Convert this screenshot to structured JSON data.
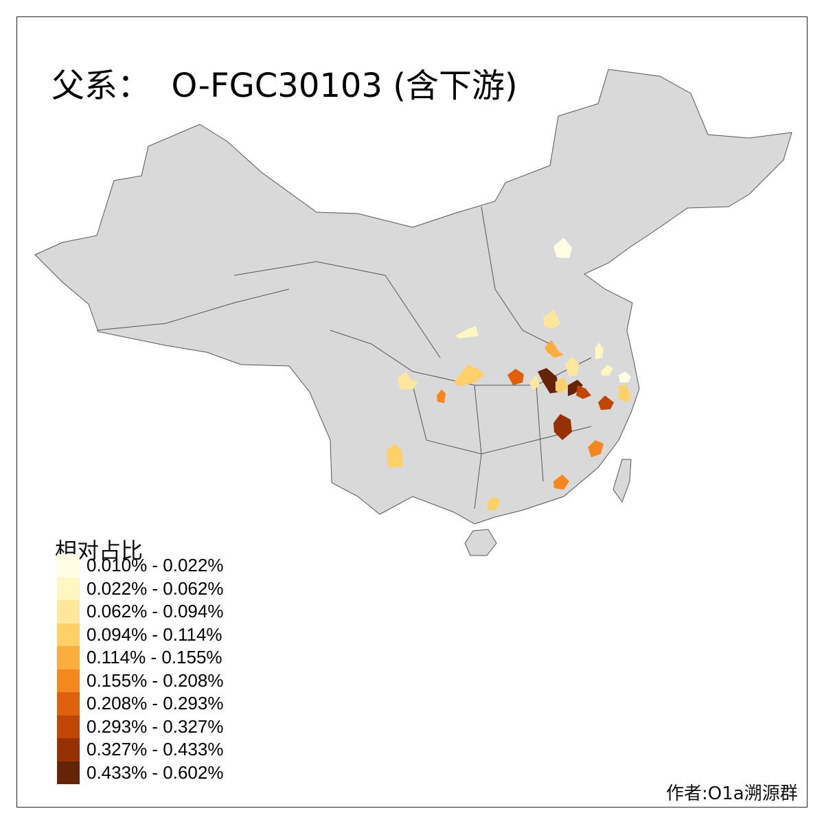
{
  "title": "父系：  O-FGC30103 (含下游)",
  "legend": {
    "title": "相对占比",
    "items": [
      {
        "label": "0.010% - 0.022%",
        "color": "#FFFDE3"
      },
      {
        "label": "0.022% - 0.062%",
        "color": "#FFF6C2"
      },
      {
        "label": "0.062% - 0.094%",
        "color": "#FEE69C"
      },
      {
        "label": "0.094% - 0.114%",
        "color": "#FED06A"
      },
      {
        "label": "0.114% - 0.155%",
        "color": "#FDAD3E"
      },
      {
        "label": "0.155% - 0.208%",
        "color": "#F5871F"
      },
      {
        "label": "0.208% - 0.293%",
        "color": "#DE620E"
      },
      {
        "label": "0.293% - 0.327%",
        "color": "#C04605"
      },
      {
        "label": "0.327% - 0.433%",
        "color": "#973104"
      },
      {
        "label": "0.433% - 0.602%",
        "color": "#652405"
      }
    ]
  },
  "author": "作者:O1a溯源群",
  "base_color": "#D9D9D9",
  "border_color": "#555555"
}
